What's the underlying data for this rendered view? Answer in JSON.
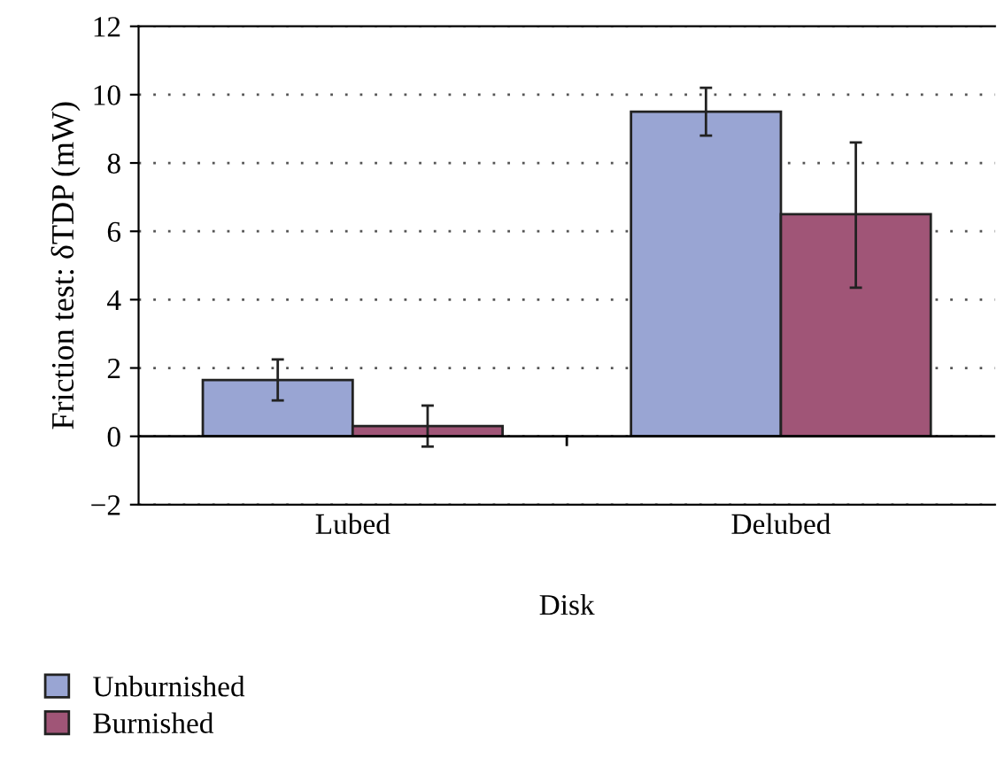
{
  "chart_data": {
    "type": "bar",
    "xlabel": "Disk",
    "ylabel": "Friction test: δTDP (mW)",
    "categories": [
      "Lubed",
      "Delubed"
    ],
    "series": [
      {
        "name": "Unburnished",
        "color": "#99a5d3",
        "values": [
          1.65,
          9.5
        ],
        "errors": [
          [
            1.05,
            2.25
          ],
          [
            8.8,
            10.2
          ]
        ]
      },
      {
        "name": "Burnished",
        "color": "#a05577",
        "values": [
          0.3,
          6.5
        ],
        "errors": [
          [
            -0.3,
            0.9
          ],
          [
            4.35,
            8.6
          ]
        ]
      }
    ],
    "ylim": [
      -2,
      12
    ],
    "yticks": [
      {
        "value": -2,
        "label": "−2"
      },
      0,
      2,
      4,
      6,
      8,
      10,
      12
    ],
    "grid": "y",
    "legend": "bottom left",
    "ref_lines": [
      {
        "axis": "y",
        "value": 0,
        "color": "#000000"
      }
    ]
  }
}
